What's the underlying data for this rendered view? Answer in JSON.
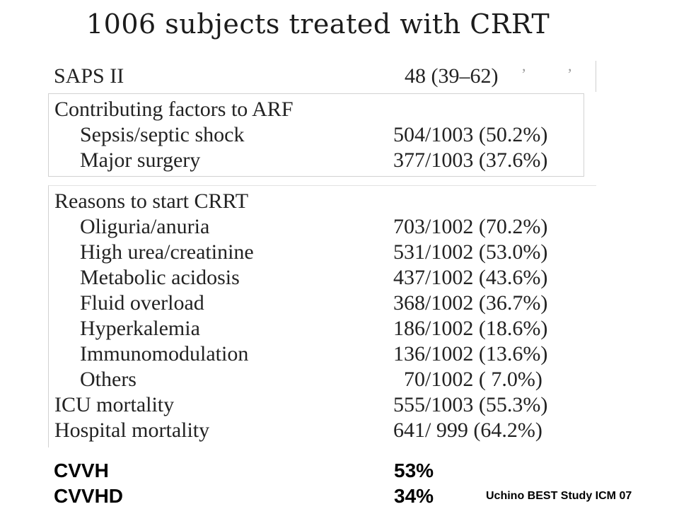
{
  "slide": {
    "title": "1006 subjects treated with CRRT",
    "source": "Uchino BEST Study ICM 07"
  },
  "saps": {
    "label": "SAPS II",
    "value": "48 (39–62)"
  },
  "factors": {
    "heading": "Contributing factors to ARF",
    "rows": [
      {
        "label": "Sepsis/septic shock",
        "value": "504/1003 (50.2%)"
      },
      {
        "label": "Major surgery",
        "value": "377/1003 (37.6%)"
      }
    ]
  },
  "reasons": {
    "heading": "Reasons to start CRRT",
    "rows": [
      {
        "label": "Oliguria/anuria",
        "value": "703/1002 (70.2%)"
      },
      {
        "label": "High urea/creatinine",
        "value": "531/1002 (53.0%)"
      },
      {
        "label": "Metabolic acidosis",
        "value": "437/1002 (43.6%)"
      },
      {
        "label": "Fluid overload",
        "value": "368/1002 (36.7%)"
      },
      {
        "label": "Hyperkalemia",
        "value": "186/1002 (18.6%)"
      },
      {
        "label": "Immunomodulation",
        "value": "136/1002 (13.6%)"
      },
      {
        "label": "Others",
        "value": "70/1002 ( 7.0%)"
      }
    ]
  },
  "outcomes": [
    {
      "label": "ICU mortality",
      "value": "555/1003 (55.3%)"
    },
    {
      "label": "Hospital mortality",
      "value": "641/ 999 (64.2%)"
    }
  ],
  "modalities": [
    {
      "label": "CVVH",
      "value": "53%"
    },
    {
      "label": "CVVHD",
      "value": "34%"
    }
  ]
}
